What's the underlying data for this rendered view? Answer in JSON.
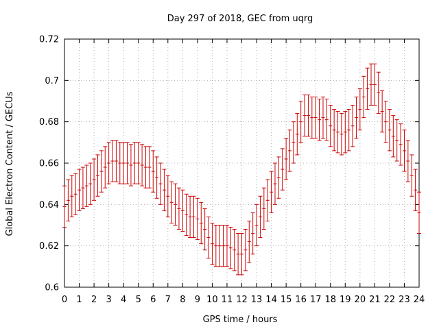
{
  "chart_data": {
    "type": "scatter",
    "title": "Day 297 of 2018, GEC from uqrg",
    "xlabel": "GPS time / hours",
    "ylabel": "Global Electron Content / GECUs",
    "xlim": [
      0,
      24
    ],
    "ylim": [
      0.6,
      0.72
    ],
    "xticks": [
      "0",
      "1",
      "2",
      "3",
      "4",
      "5",
      "6",
      "7",
      "8",
      "9",
      "10",
      "11",
      "12",
      "13",
      "14",
      "15",
      "16",
      "17",
      "18",
      "19",
      "20",
      "21",
      "22",
      "23",
      "24"
    ],
    "yticks": [
      "0.6",
      "0.62",
      "0.64",
      "0.66",
      "0.68",
      "0.7",
      "0.72"
    ],
    "grid": true,
    "error_bars": true,
    "series_color": "#cc0000",
    "series": [
      {
        "x": [
          0,
          0.25,
          0.5,
          0.75,
          1,
          1.25,
          1.5,
          1.75,
          2,
          2.25,
          2.5,
          2.75,
          3,
          3.25,
          3.5,
          3.75,
          4,
          4.25,
          4.5,
          4.75,
          5,
          5.25,
          5.5,
          5.75,
          6,
          6.25,
          6.5,
          6.75,
          7,
          7.25,
          7.5,
          7.75,
          8,
          8.25,
          8.5,
          8.75,
          9,
          9.25,
          9.5,
          9.75,
          10,
          10.25,
          10.5,
          10.75,
          11,
          11.25,
          11.5,
          11.75,
          12,
          12.25,
          12.5,
          12.75,
          13,
          13.25,
          13.5,
          13.75,
          14,
          14.25,
          14.5,
          14.75,
          15,
          15.25,
          15.5,
          15.75,
          16,
          16.25,
          16.5,
          16.75,
          17,
          17.25,
          17.5,
          17.75,
          18,
          18.25,
          18.5,
          18.75,
          19,
          19.25,
          19.5,
          19.75,
          20,
          20.25,
          20.5,
          20.75,
          21,
          21.25,
          21.5,
          21.75,
          22,
          22.25,
          22.5,
          22.75,
          23,
          23.25,
          23.5,
          23.75,
          24
        ],
        "y": [
          0.639,
          0.642,
          0.644,
          0.645,
          0.647,
          0.648,
          0.649,
          0.65,
          0.652,
          0.654,
          0.656,
          0.658,
          0.66,
          0.661,
          0.661,
          0.66,
          0.66,
          0.66,
          0.659,
          0.66,
          0.66,
          0.659,
          0.658,
          0.658,
          0.656,
          0.653,
          0.65,
          0.647,
          0.644,
          0.641,
          0.64,
          0.638,
          0.637,
          0.635,
          0.634,
          0.634,
          0.633,
          0.631,
          0.628,
          0.624,
          0.621,
          0.62,
          0.62,
          0.62,
          0.62,
          0.619,
          0.618,
          0.616,
          0.616,
          0.618,
          0.622,
          0.626,
          0.63,
          0.634,
          0.638,
          0.642,
          0.646,
          0.65,
          0.653,
          0.657,
          0.662,
          0.666,
          0.67,
          0.674,
          0.68,
          0.683,
          0.683,
          0.682,
          0.682,
          0.681,
          0.682,
          0.681,
          0.678,
          0.676,
          0.675,
          0.674,
          0.675,
          0.676,
          0.678,
          0.682,
          0.686,
          0.692,
          0.696,
          0.698,
          0.698,
          0.694,
          0.685,
          0.68,
          0.676,
          0.673,
          0.671,
          0.669,
          0.666,
          0.661,
          0.654,
          0.647,
          0.636
        ],
        "yerr": 0.01
      }
    ]
  }
}
